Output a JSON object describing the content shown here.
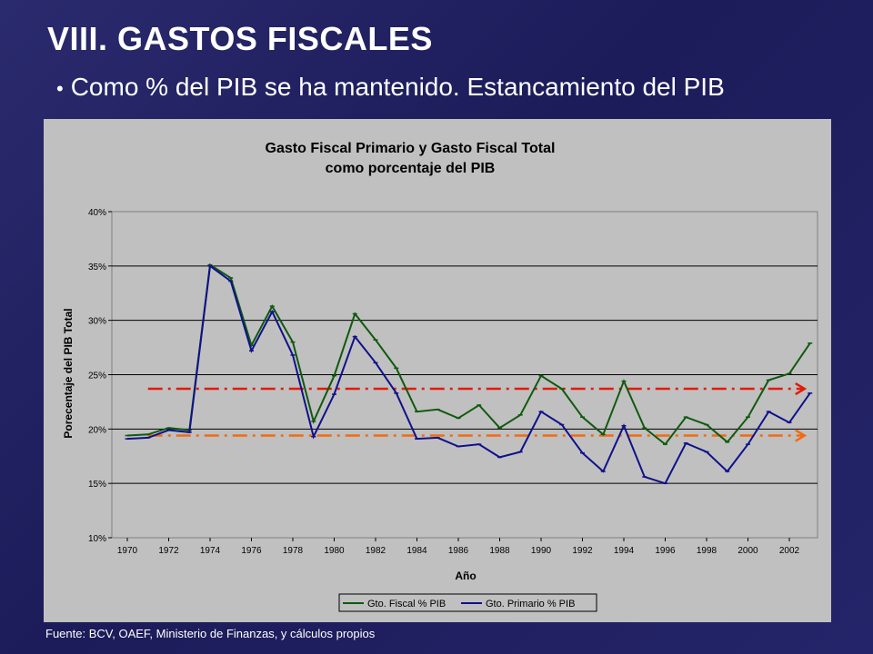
{
  "slide": {
    "title": "VIII. GASTOS FISCALES",
    "bullet": "Como % del PIB se ha mantenido. Estancamiento del PIB",
    "source": "Fuente: BCV, OAEF, Ministerio de Finanzas, y cálculos propios"
  },
  "chart_data": {
    "type": "line",
    "title_line1": "Gasto Fiscal Primario y Gasto Fiscal Total",
    "title_line2": "como porcentaje del PIB",
    "xlabel": "Año",
    "ylabel": "Porecentaje del PIB Total",
    "ylim": [
      0.1,
      0.4
    ],
    "yticks": [
      "10%",
      "15%",
      "20%",
      "25%",
      "30%",
      "35%",
      "40%"
    ],
    "xlim": [
      1970,
      2003
    ],
    "xticks": [
      "1970",
      "1972",
      "1974",
      "1976",
      "1978",
      "1980",
      "1982",
      "1984",
      "1986",
      "1988",
      "1990",
      "1992",
      "1994",
      "1996",
      "1998",
      "2000",
      "2002"
    ],
    "x": [
      1970,
      1971,
      1972,
      1973,
      1974,
      1975,
      1976,
      1977,
      1978,
      1979,
      1980,
      1981,
      1982,
      1983,
      1984,
      1985,
      1986,
      1987,
      1988,
      1989,
      1990,
      1991,
      1992,
      1993,
      1994,
      1995,
      1996,
      1997,
      1998,
      1999,
      2000,
      2001,
      2002,
      2003
    ],
    "grid": "horizontal",
    "legend_position": "bottom",
    "series": [
      {
        "name": "Gto. Fiscal % PIB",
        "color": "#0f5a0f",
        "values": [
          0.194,
          0.195,
          0.201,
          0.199,
          0.351,
          0.339,
          0.277,
          0.313,
          0.28,
          0.207,
          0.249,
          0.306,
          0.282,
          0.256,
          0.216,
          0.218,
          0.21,
          0.222,
          0.201,
          0.213,
          0.249,
          0.237,
          0.211,
          0.195,
          0.244,
          0.201,
          0.186,
          0.211,
          0.204,
          0.188,
          0.211,
          0.245,
          0.251,
          0.279
        ]
      },
      {
        "name": "Gto. Primario % PIB",
        "color": "#10108c",
        "values": [
          0.191,
          0.192,
          0.199,
          0.197,
          0.35,
          0.336,
          0.272,
          0.308,
          0.268,
          0.193,
          0.232,
          0.285,
          0.261,
          0.233,
          0.191,
          0.192,
          0.184,
          0.186,
          0.174,
          0.179,
          0.216,
          0.204,
          0.178,
          0.161,
          0.203,
          0.156,
          0.15,
          0.187,
          0.179,
          0.161,
          0.186,
          0.216,
          0.206,
          0.233
        ]
      }
    ],
    "reference_lines": [
      {
        "value": 0.237,
        "color": "#e21a0a",
        "style": "dash-dot",
        "arrow": "right"
      },
      {
        "value": 0.194,
        "color": "#f26b10",
        "style": "dash-dot",
        "arrow": "right"
      }
    ]
  }
}
